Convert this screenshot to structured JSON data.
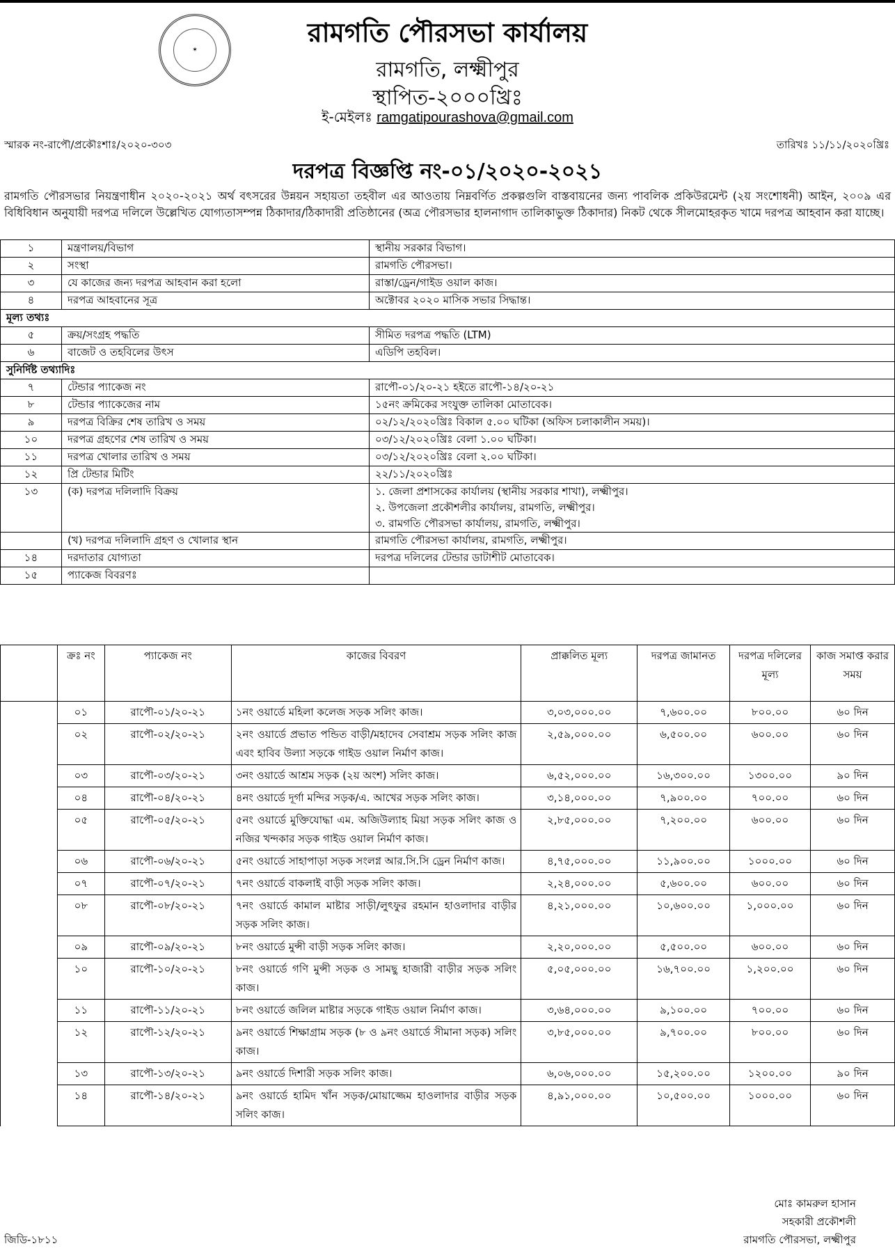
{
  "header": {
    "title": "রামগতি পৌরসভা কার্যালয়",
    "location": "রামগতি, লক্ষ্মীপুর",
    "established": "স্থাপিত-২০০০খ্রিঃ",
    "email_label": "ই-মেইলঃ",
    "email": "ramgatipourashova@gmail.com",
    "seal_text": "রামগতি পৌরসভা স্থাপিত ২০০০"
  },
  "memo_no": "স্মারক নং-রাপৌ/প্রকৌঃশাঃ/২০২০-৩০৩",
  "date": "তারিখঃ ১১/১১/২০২০খ্রিঃ",
  "notice_title": "দরপত্র বিজ্ঞপ্তি নং-০১/২০২০-২০২১",
  "intro": "রামগতি পৌরসভার নিয়ন্ত্রণাধীন ২০২০-২০২১ অর্থ বৎসরের উন্নয়ন সহায়তা তহবীল এর আওতায় নিম্নবর্ণিত প্রকল্পগুলি বাস্তবায়নের জন্য পাবলিক প্রকিউরমেন্ট (২য় সংশোধনী) আইন, ২০০৯ এর বিধিবিধান অনুযায়ী দরপত্র দলিলে উল্লেখিত যোগ্যতাসম্পন্ন ঠিকাদার/ঠিকাদারী প্রতিষ্ঠানের (অত্র পৌরসভার হালনাগাদ তালিকাভুক্ত ঠিকাদার) নিকট থেকে সীলমোহরকৃত খামে দরপত্র আহবান করা যাচ্ছে।",
  "info_rows": [
    {
      "n": "১",
      "label": "মন্ত্রণালয়/বিভাগ",
      "value": "স্থানীয় সরকার বিভাগ।"
    },
    {
      "n": "২",
      "label": "সংস্থা",
      "value": "রামগতি পৌরসভা।"
    },
    {
      "n": "৩",
      "label": "যে কাজের জন্য দরপত্র আহবান করা হলো",
      "value": "রাস্তা/ড্রেন/গাইড ওয়াল কাজ।"
    },
    {
      "n": "৪",
      "label": "দরপত্র আহবানের সূত্র",
      "value": "অক্টোবর ২০২০ মাসিক সভার সিদ্ধান্ত।"
    },
    {
      "section": "মূল্য তথ্যঃ"
    },
    {
      "n": "৫",
      "label": "ক্রয়/সংগ্রহ পদ্ধতি",
      "value": "সীমিত দরপত্র পদ্ধতি (LTM)"
    },
    {
      "n": "৬",
      "label": "বাজেট ও তহবিলের উৎস",
      "value": "এডিপি তহবিল।"
    },
    {
      "section": "সুনির্দিষ্ট তথ্যাদিঃ"
    },
    {
      "n": "৭",
      "label": "টেন্ডার প্যাকেজ নং",
      "value": "রাপৌ-০১/২০-২১ হইতে রাপৌ-১৪/২০-২১"
    },
    {
      "n": "৮",
      "label": "টেন্ডার প্যাকেজের নাম",
      "value": "১৫নং ক্রমিকের সংযুক্ত তালিকা মোতাবেক।"
    },
    {
      "n": "৯",
      "label": "দরপত্র বিক্রির শেষ তারিখ ও সময়",
      "value": "০২/১২/২০২০খ্রিঃ বিকাল ৫.০০ ঘটিকা (অফিস চলাকালীন সময়)।"
    },
    {
      "n": "১০",
      "label": "দরপত্র গ্রহণের শেষ তারিখ ও সময়",
      "value": "০৩/১২/২০২০খ্রিঃ বেলা ১.০০ ঘটিকা।"
    },
    {
      "n": "১১",
      "label": "দরপত্র খোলার তারিখ ও সময়",
      "value": "০৩/১২/২০২০খ্রিঃ বেলা ২.০০ ঘটিকা।"
    },
    {
      "n": "১২",
      "label": "প্রি টেন্ডার মিটিং",
      "value": "২২/১১/২০২০খ্রিঃ"
    },
    {
      "n": "১৩",
      "label": "(ক) দরপত্র দলিলাদি বিক্রয়",
      "value": "১. জেলা প্রশাসকের কার্যালয় (স্থানীয় সরকার শাখা), লক্ষ্মীপুর।\n২. উপজেলা প্রকৌশলীর কার্যালয়, রামগতি, লক্ষ্মীপুর।\n৩. রামগতি পৌরসভা কার্যালয়, রামগতি, লক্ষ্মীপুর।"
    },
    {
      "n": "",
      "label": "(খ) দরপত্র দলিলাদি গ্রহণ ও খোলার স্থান",
      "value": "রামগতি পৌরসভা কার্যালয়, রামগতি, লক্ষ্মীপুর।"
    },
    {
      "n": "১৪",
      "label": "দরদাতার যোগ্যতা",
      "value": "দরপত্র দলিলের টেন্ডার ডাটাশীট মোতাবেক।"
    },
    {
      "n": "১৫",
      "label": "প্যাকেজ বিবরণঃ",
      "value": ""
    }
  ],
  "packages": {
    "headers": [
      "ক্রঃ নং",
      "প্যাকেজ নং",
      "কাজের বিবরণ",
      "প্রাক্কলিত মূল্য",
      "দরপত্র জামানত",
      "দরপত্র দলিলের মূল্য",
      "কাজ সমাপ্ত করার সময়"
    ],
    "rows": [
      [
        "০১",
        "রাপৌ-০১/২০-২১",
        "১নং ওয়ার্ডে মহিলা কলেজ সড়ক সলিং কাজ।",
        "৩,০৩,০০০.০০",
        "৭,৬০০.০০",
        "৮০০.০০",
        "৬০ দিন"
      ],
      [
        "০২",
        "রাপৌ-০২/২০-২১",
        "২নং ওয়ার্ডে প্রভাত পন্ডিত বাড়ী/মহাদেব সেবাশ্রম সড়ক সলিং কাজ এবং হাবিব উল্যা সড়কে গাইড ওয়াল নির্মাণ কাজ।",
        "২,৫৯,০০০.০০",
        "৬,৫০০.০০",
        "৬০০.০০",
        "৬০ দিন"
      ],
      [
        "০৩",
        "রাপৌ-০৩/২০-২১",
        "৩নং ওয়ার্ডে আশ্রম সড়ক (২য় অংশ) সলিং কাজ।",
        "৬,৫২,০০০.০০",
        "১৬,৩০০.০০",
        "১৩০০.০০",
        "৯০ দিন"
      ],
      [
        "০৪",
        "রাপৌ-০৪/২০-২১",
        "৪নং ওয়ার্ডে দূর্গা মন্দির সড়ক/এ. আখের সড়ক সলিং কাজ।",
        "৩,১৪,০০০.০০",
        "৭,৯০০.০০",
        "৭০০.০০",
        "৬০ দিন"
      ],
      [
        "০৫",
        "রাপৌ-০৫/২০-২১",
        "৫নং ওয়ার্ডে মুক্তিযোদ্ধা এম. অজিউল্যাহ মিয়া সড়ক সলিং কাজ ও নজির খন্দকার সড়ক গাইড ওয়াল নির্মাণ কাজ।",
        "২,৮৫,০০০.০০",
        "৭,২০০.০০",
        "৬০০.০০",
        "৬০ দিন"
      ],
      [
        "০৬",
        "রাপৌ-০৬/২০-২১",
        "৫নং ওয়ার্ডে সাহাপাড়া সড়ক সংলগ্ন আর.সি.সি ড্রেন নির্মাণ কাজ।",
        "৪,৭৫,০০০.০০",
        "১১,৯০০.০০",
        "১০০০.০০",
        "৬০ দিন"
      ],
      [
        "০৭",
        "রাপৌ-০৭/২০-২১",
        "৭নং ওয়ার্ডে বাকলাই বাড়ী সড়ক সলিং কাজ।",
        "২,২৪,০০০.০০",
        "৫,৬০০.০০",
        "৬০০.০০",
        "৬০ দিন"
      ],
      [
        "০৮",
        "রাপৌ-০৮/২০-২১",
        "৭নং ওয়ার্ডে কামাল মাষ্টার সাড়ী/লুৎফুর রহমান হাওলাদার বাড়ীর সড়ক সলিং কাজ।",
        "৪,২১,০০০.০০",
        "১০,৬০০.০০",
        "১,০০০.০০",
        "৬০ দিন"
      ],
      [
        "০৯",
        "রাপৌ-০৯/২০-২১",
        "৮নং ওয়ার্ডে মুন্সী বাড়ী সড়ক সলিং কাজ।",
        "২,২০,০০০.০০",
        "৫,৫০০.০০",
        "৬০০.০০",
        "৬০ দিন"
      ],
      [
        "১০",
        "রাপৌ-১০/২০-২১",
        "৮নং ওয়ার্ডে গণি মুন্সী সড়ক ও সামছু হাজারী বাড়ীর সড়ক সলিং কাজ।",
        "৫,০৫,০০০.০০",
        "১৬,৭০০.০০",
        "১,২০০.০০",
        "৬০ দিন"
      ],
      [
        "১১",
        "রাপৌ-১১/২০-২১",
        "৮নং ওয়ার্ডে জলিল মাষ্টার সড়কে গাইড ওয়াল নির্মাণ কাজ।",
        "৩,৬৪,০০০.০০",
        "৯,১০০.০০",
        "৭০০.০০",
        "৬০ দিন"
      ],
      [
        "১২",
        "রাপৌ-১২/২০-২১",
        "৯নং ওয়ার্ডে শিক্ষাগ্রাম সড়ক (৮ ও ৯নং ওয়ার্ডে সীমানা সড়ক) সলিং কাজ।",
        "৩,৮৫,০০০.০০",
        "৯,৭০০.০০",
        "৮০০.০০",
        "৬০ দিন"
      ],
      [
        "১৩",
        "রাপৌ-১৩/২০-২১",
        "৯নং ওয়ার্ডে দিশারী সড়ক সলিং কাজ।",
        "৬,০৬,০০০.০০",
        "১৫,২০০.০০",
        "১২০০.০০",
        "৯০ দিন"
      ],
      [
        "১৪",
        "রাপৌ-১৪/২০-২১",
        "৯নং ওয়ার্ডে হামিদ খাঁন সড়ক/মোয়াজ্জেম হাওলাদার বাড়ীর সড়ক সলিং কাজ।",
        "৪,৯১,০০০.০০",
        "১০,৫০০.০০",
        "১০০০.০০",
        "৬০ দিন"
      ]
    ]
  },
  "signature": {
    "name": "মোঃ কামরুল হাসান",
    "designation": "সহকারী প্রকৌশলী",
    "office": "রামগতি পৌরসভা, লক্ষ্মীপুর"
  },
  "footer_code": "জিডি-১৮১১"
}
